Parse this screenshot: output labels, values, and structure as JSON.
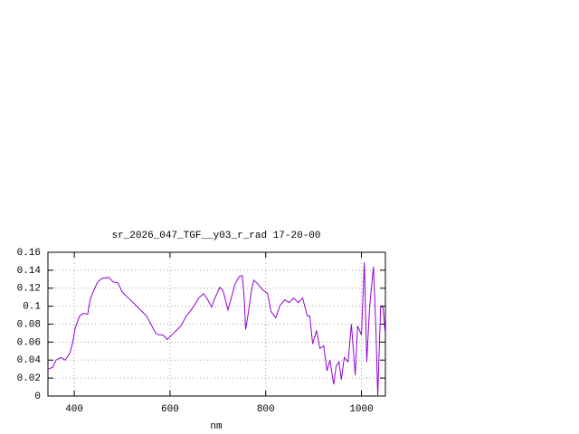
{
  "chart_data": {
    "type": "line",
    "title": "sr_2026_047_TGF__y03_r_rad 17-20-00",
    "xlabel": "nm",
    "x": [
      345,
      355,
      362,
      372,
      381,
      391,
      396,
      402,
      411,
      419,
      428,
      434,
      442,
      449,
      458,
      472,
      481,
      491,
      500,
      509,
      525,
      538,
      551,
      562,
      570,
      577,
      585,
      594,
      604,
      613,
      623,
      634,
      642,
      651,
      660,
      670,
      679,
      687,
      694,
      704,
      711,
      721,
      728,
      736,
      745,
      751,
      755,
      758,
      764,
      770,
      775,
      783,
      792,
      804,
      811,
      821,
      830,
      840,
      849,
      858,
      868,
      877,
      887,
      892,
      898,
      906,
      913,
      921,
      928,
      934,
      942,
      947,
      953,
      958,
      964,
      972,
      979,
      987,
      992,
      1000,
      1006,
      1011,
      1017,
      1025,
      1030,
      1034,
      1040,
      1045,
      1049
    ],
    "series": [
      {
        "color": "#9400d3",
        "values": [
          0.03,
          0.032,
          0.04,
          0.043,
          0.04,
          0.048,
          0.058,
          0.076,
          0.089,
          0.092,
          0.091,
          0.109,
          0.119,
          0.127,
          0.131,
          0.132,
          0.127,
          0.126,
          0.116,
          0.111,
          0.103,
          0.096,
          0.089,
          0.078,
          0.07,
          0.068,
          0.068,
          0.063,
          0.068,
          0.073,
          0.078,
          0.089,
          0.094,
          0.101,
          0.109,
          0.114,
          0.107,
          0.099,
          0.109,
          0.121,
          0.117,
          0.096,
          0.109,
          0.125,
          0.133,
          0.134,
          0.109,
          0.074,
          0.094,
          0.117,
          0.129,
          0.125,
          0.119,
          0.114,
          0.094,
          0.087,
          0.101,
          0.107,
          0.104,
          0.109,
          0.104,
          0.109,
          0.089,
          0.089,
          0.058,
          0.073,
          0.053,
          0.056,
          0.028,
          0.04,
          0.013,
          0.033,
          0.038,
          0.018,
          0.043,
          0.038,
          0.08,
          0.023,
          0.078,
          0.068,
          0.149,
          0.038,
          0.099,
          0.144,
          0.078,
          0,
          0.099,
          0.099,
          0.073
        ]
      }
    ],
    "xlim": [
      345,
      1050
    ],
    "ylim": [
      0,
      0.16
    ],
    "xticks": [
      400,
      600,
      800,
      1000
    ],
    "yticks": [
      0,
      0.02,
      0.04,
      0.06,
      0.08,
      0.1,
      0.12,
      0.14,
      0.16
    ],
    "grid": true
  }
}
